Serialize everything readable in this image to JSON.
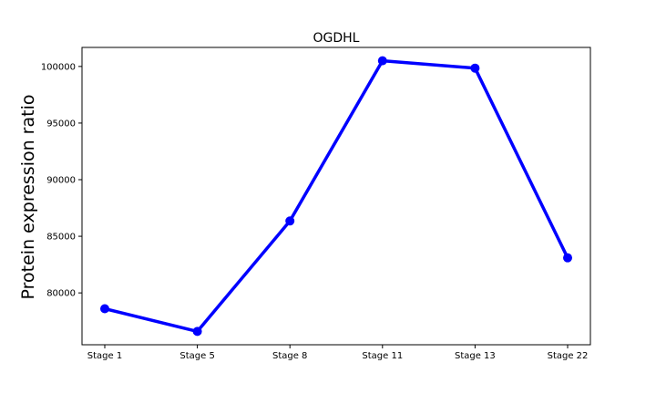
{
  "chart_data": {
    "type": "line",
    "title": "OGDHL",
    "xlabel": "",
    "ylabel": "Protein expression ratio",
    "categories": [
      "Stage 1",
      "Stage 5",
      "Stage 8",
      "Stage 11",
      "Stage 13",
      "Stage 22"
    ],
    "series": [
      {
        "values": [
          78600,
          76600,
          86350,
          100500,
          99850,
          83100
        ]
      }
    ],
    "ylim": [
      75420,
      101680
    ],
    "yticks": [
      80000,
      85000,
      90000,
      95000,
      100000
    ],
    "ytick_labels": [
      "80000",
      "85000",
      "90000",
      "95000",
      "100000"
    ],
    "grid": false,
    "legend": "none",
    "colors": {
      "line": "#0000ff",
      "marker": "#0000ff",
      "axes": "#000000"
    }
  }
}
